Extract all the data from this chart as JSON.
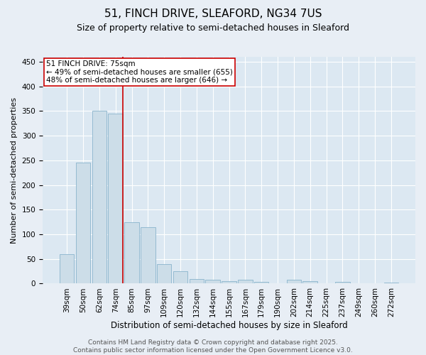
{
  "title": "51, FINCH DRIVE, SLEAFORD, NG34 7US",
  "subtitle": "Size of property relative to semi-detached houses in Sleaford",
  "xlabel": "Distribution of semi-detached houses by size in Sleaford",
  "ylabel": "Number of semi-detached properties",
  "categories": [
    "39sqm",
    "50sqm",
    "62sqm",
    "74sqm",
    "85sqm",
    "97sqm",
    "109sqm",
    "120sqm",
    "132sqm",
    "144sqm",
    "155sqm",
    "167sqm",
    "179sqm",
    "190sqm",
    "202sqm",
    "214sqm",
    "225sqm",
    "237sqm",
    "249sqm",
    "260sqm",
    "272sqm"
  ],
  "values": [
    60,
    245,
    350,
    345,
    125,
    115,
    40,
    25,
    10,
    8,
    5,
    8,
    3,
    0,
    8,
    5,
    0,
    4,
    0,
    0,
    2
  ],
  "bar_color": "#ccdde8",
  "bar_edge_color": "#8ab4cc",
  "vline_x_index": 3,
  "vline_color": "#cc0000",
  "annotation_text": "51 FINCH DRIVE: 75sqm\n← 49% of semi-detached houses are smaller (655)\n48% of semi-detached houses are larger (646) →",
  "annotation_box_color": "white",
  "annotation_box_edge_color": "#cc0000",
  "ylim": [
    0,
    460
  ],
  "yticks": [
    0,
    50,
    100,
    150,
    200,
    250,
    300,
    350,
    400,
    450
  ],
  "background_color": "#e8eef5",
  "plot_background_color": "#dce8f2",
  "footer_text": "Contains HM Land Registry data © Crown copyright and database right 2025.\nContains public sector information licensed under the Open Government Licence v3.0.",
  "title_fontsize": 11,
  "subtitle_fontsize": 9,
  "xlabel_fontsize": 8.5,
  "ylabel_fontsize": 8,
  "tick_fontsize": 7.5,
  "annotation_fontsize": 7.5,
  "footer_fontsize": 6.5
}
